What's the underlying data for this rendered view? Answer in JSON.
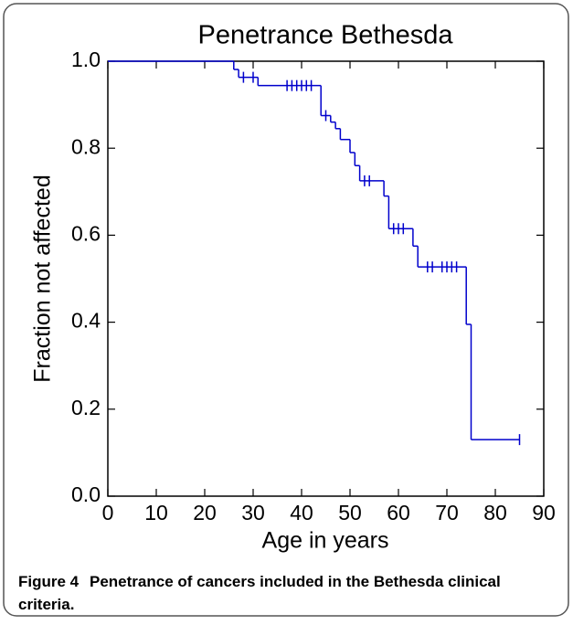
{
  "chart_data": {
    "type": "survival-step",
    "title": "Penetrance Bethesda",
    "x_label": "Age in years",
    "y_label": "Fraction not affected",
    "caption_label": "Figure 4",
    "caption_text": "Penetrance of cancers included in the Bethesda clinical criteria.",
    "color": "#0000cc",
    "series": [
      {
        "x": [
          0,
          26,
          27,
          31,
          44,
          46,
          47,
          48,
          50,
          51,
          52,
          57,
          58,
          63,
          64,
          74,
          75
        ],
        "values": [
          1.0,
          0.981,
          0.963,
          0.944,
          0.875,
          0.86,
          0.845,
          0.82,
          0.79,
          0.76,
          0.725,
          0.69,
          0.615,
          0.575,
          0.527,
          0.395,
          0.13
        ]
      }
    ],
    "censored": {
      "x": [
        28,
        30,
        37,
        38,
        39,
        40,
        41,
        42,
        45,
        53,
        54,
        59,
        60,
        61,
        66,
        67,
        69,
        70,
        71,
        72,
        85
      ],
      "values": [
        0.963,
        0.963,
        0.944,
        0.944,
        0.944,
        0.944,
        0.944,
        0.944,
        0.875,
        0.725,
        0.725,
        0.615,
        0.615,
        0.615,
        0.527,
        0.527,
        0.527,
        0.527,
        0.527,
        0.527,
        0.13
      ]
    },
    "xlim": [
      0,
      90
    ],
    "xticks": [
      0,
      10,
      20,
      30,
      40,
      50,
      60,
      70,
      80,
      90
    ],
    "ylim": [
      0,
      1
    ],
    "yticks": [
      {
        "value": 0,
        "label": "0.0"
      },
      {
        "value": 0.2,
        "label": "0.2"
      },
      {
        "value": 0.4,
        "label": "0.4"
      },
      {
        "value": 0.6,
        "label": "0.6"
      },
      {
        "value": 0.8,
        "label": "0.8"
      },
      {
        "value": 1,
        "label": "1.0"
      }
    ]
  }
}
